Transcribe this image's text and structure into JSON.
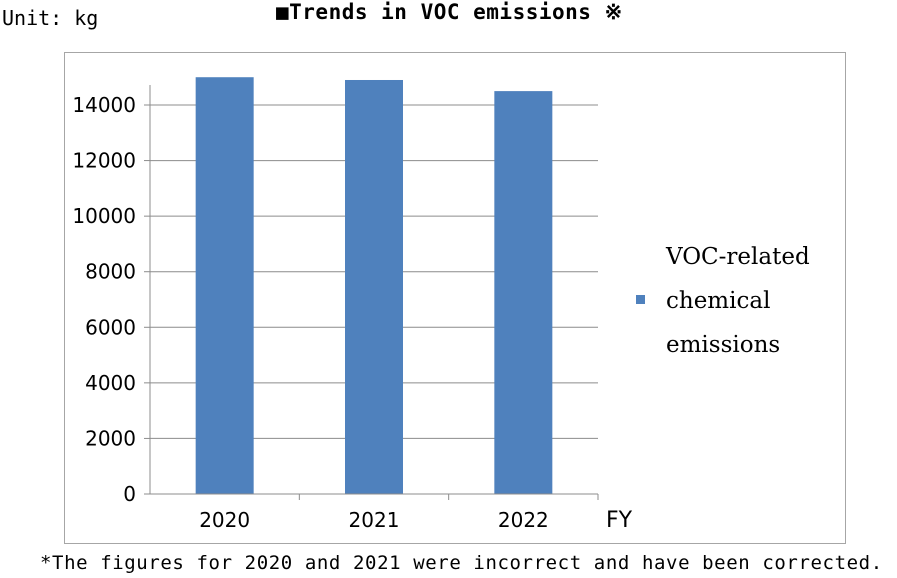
{
  "unit_label": "Unit: kg",
  "footnote": "*The figures for 2020 and 2021 were incorrect and have been corrected.",
  "chart_data": {
    "type": "bar",
    "title": "■Trends in VOC emissions ※",
    "xlabel": "FY",
    "ylabel": "",
    "categories": [
      "2020",
      "2021",
      "2022"
    ],
    "series": [
      {
        "name": "VOC-related chemical emissions",
        "values": [
          15000,
          14900,
          14500
        ],
        "color": "#4f81bd"
      }
    ],
    "ylim": [
      0,
      15000
    ],
    "yticks": [
      0,
      2000,
      4000,
      6000,
      8000,
      10000,
      12000,
      14000
    ],
    "grid": true,
    "legend_position": "right",
    "legend_lines": [
      "VOC-related",
      "chemical",
      "emissions"
    ]
  }
}
